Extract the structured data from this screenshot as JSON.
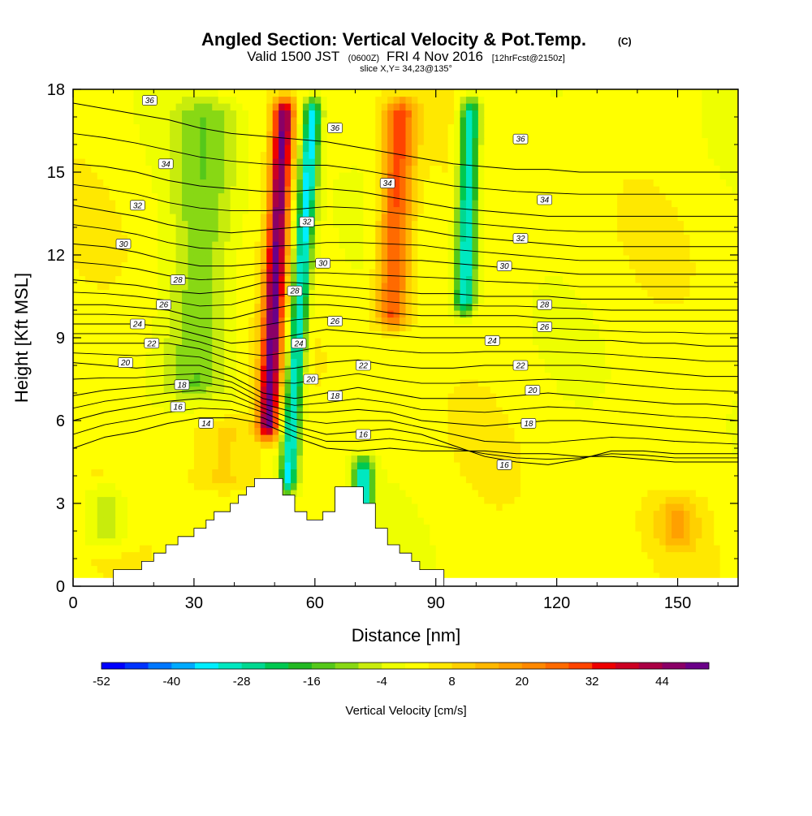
{
  "title": "Angled Section: Vertical Velocity & Pot.Temp.",
  "title_suffix": "(C)",
  "valid_main": "Valid 1500 JST",
  "valid_paren1": "(0600Z)",
  "valid_date": "FRI 4 Nov 2016",
  "valid_paren2": "[12hrFcst@2150z]",
  "slice_info": "slice X,Y= 34,23@135°",
  "colors": {
    "background": "#ffffff",
    "terrain": "#ffffff",
    "contour": "#000000"
  },
  "chart_data": {
    "type": "heatmap",
    "xlabel": "Distance [nm]",
    "ylabel": "Height [Kft MSL]",
    "xlim": [
      0,
      165
    ],
    "ylim": [
      0,
      18
    ],
    "x_ticks": [
      {
        "value": 0,
        "label": "0"
      },
      {
        "value": 30,
        "label": "30"
      },
      {
        "value": 60,
        "label": "60"
      },
      {
        "value": 90,
        "label": "90"
      },
      {
        "value": 120,
        "label": "120"
      },
      {
        "value": 150,
        "label": "150"
      }
    ],
    "y_ticks": [
      {
        "value": 0,
        "label": "0"
      },
      {
        "value": 3,
        "label": "3"
      },
      {
        "value": 6,
        "label": "6"
      },
      {
        "value": 9,
        "label": "9"
      },
      {
        "value": 12,
        "label": "12"
      },
      {
        "value": 15,
        "label": "15"
      },
      {
        "value": 18,
        "label": "18"
      }
    ],
    "colorbar": {
      "title": "Vertical Velocity [cm/s]",
      "min": -52,
      "max": 52,
      "step": 4,
      "tick_labels": [
        "-52",
        "-40",
        "-28",
        "-16",
        "-4",
        "8",
        "20",
        "32",
        "44"
      ],
      "colors": [
        "#0000ff",
        "#0033ff",
        "#0077ff",
        "#00aaff",
        "#00eeff",
        "#00e8c0",
        "#00d890",
        "#00c850",
        "#22b822",
        "#55c81a",
        "#88d814",
        "#c8ec0c",
        "#eeff00",
        "#ffff00",
        "#ffe800",
        "#ffd000",
        "#ffb800",
        "#ffa000",
        "#ff8800",
        "#ff6a00",
        "#ff4400",
        "#ee0000",
        "#cc0022",
        "#aa0044",
        "#8a0066",
        "#6a0088"
      ]
    },
    "updrafts": [
      {
        "x": 48,
        "w": 2.6,
        "amp": 46,
        "zmin": 5.0,
        "zmax": 18,
        "tilt": 0.35
      },
      {
        "x": 79,
        "w": 4.0,
        "amp": 28,
        "zmin": 9.0,
        "zmax": 18,
        "tilt": 0.25
      },
      {
        "x": 37,
        "w": 9.0,
        "amp": 9,
        "zmin": 3.0,
        "zmax": 6.5,
        "tilt": 0
      },
      {
        "x": 150,
        "w": 5.0,
        "amp": 12,
        "zmin": 1.0,
        "zmax": 3.5,
        "tilt": 0
      }
    ],
    "downdrafts": [
      {
        "x": 53,
        "w": 2.2,
        "amp": 36,
        "zmin": 3.0,
        "zmax": 18,
        "tilt": 0.45
      },
      {
        "x": 97,
        "w": 2.5,
        "amp": 34,
        "zmin": 9.5,
        "zmax": 18,
        "tilt": 0.2
      },
      {
        "x": 72,
        "w": 2.5,
        "amp": 34,
        "zmin": 2.4,
        "zmax": 5.0,
        "tilt": 0
      },
      {
        "x": 30,
        "w": 8.0,
        "amp": 12,
        "zmin": 6.5,
        "zmax": 18,
        "tilt": 0.3
      },
      {
        "x": 8,
        "w": 6.0,
        "amp": 10,
        "zmin": 1.0,
        "zmax": 4.0,
        "tilt": 0
      }
    ],
    "terrain": [
      [
        10,
        0.3
      ],
      [
        10,
        0.6
      ],
      [
        17,
        0.6
      ],
      [
        17,
        0.9
      ],
      [
        20,
        0.9
      ],
      [
        20,
        1.2
      ],
      [
        23,
        1.2
      ],
      [
        23,
        1.5
      ],
      [
        26,
        1.5
      ],
      [
        26,
        1.8
      ],
      [
        30,
        1.8
      ],
      [
        30,
        2.1
      ],
      [
        33,
        2.1
      ],
      [
        33,
        2.4
      ],
      [
        35,
        2.4
      ],
      [
        35,
        2.7
      ],
      [
        39,
        2.7
      ],
      [
        39,
        3.0
      ],
      [
        41,
        3.0
      ],
      [
        41,
        3.3
      ],
      [
        43,
        3.3
      ],
      [
        43,
        3.6
      ],
      [
        45,
        3.6
      ],
      [
        45,
        3.9
      ],
      [
        52,
        3.9
      ],
      [
        52,
        3.3
      ],
      [
        55,
        3.3
      ],
      [
        55,
        2.7
      ],
      [
        58,
        2.7
      ],
      [
        58,
        2.4
      ],
      [
        62,
        2.4
      ],
      [
        62,
        2.7
      ],
      [
        65,
        2.7
      ],
      [
        65,
        3.6
      ],
      [
        72,
        3.6
      ],
      [
        72,
        3.0
      ],
      [
        75,
        3.0
      ],
      [
        75,
        2.1
      ],
      [
        78,
        2.1
      ],
      [
        78,
        1.5
      ],
      [
        81,
        1.5
      ],
      [
        81,
        1.2
      ],
      [
        84,
        1.2
      ],
      [
        84,
        0.9
      ],
      [
        86,
        0.9
      ],
      [
        86,
        0.6
      ],
      [
        92,
        0.6
      ],
      [
        92,
        0.3
      ]
    ],
    "theta_contours": [
      {
        "level": 14,
        "label": "14",
        "z": [
          5.0,
          5.4,
          5.6,
          5.9,
          6.1,
          6.1,
          5.9,
          5.4,
          5.0,
          4.9,
          5.0,
          4.9,
          4.9,
          4.9,
          4.8,
          4.8,
          4.7,
          4.7,
          4.6,
          4.5,
          4.5,
          4.5
        ]
      },
      {
        "level": 16,
        "label": "16",
        "z": [
          6.0,
          6.3,
          6.5,
          6.7,
          6.8,
          6.7,
          6.3,
          5.8,
          5.5,
          5.6,
          5.7,
          5.5,
          5.1,
          4.7,
          4.5,
          4.4,
          4.6,
          4.9,
          4.9,
          4.8,
          4.8,
          4.8
        ]
      },
      {
        "level": 18,
        "label": "18",
        "z": [
          6.9,
          7.1,
          7.2,
          7.3,
          7.4,
          7.2,
          6.6,
          6.3,
          6.3,
          6.4,
          6.3,
          6.0,
          5.9,
          5.8,
          5.9,
          6.0,
          6.0,
          5.9,
          5.8,
          5.7,
          5.6,
          5.5
        ]
      },
      {
        "level": 20,
        "label": "20",
        "z": [
          8.1,
          8.0,
          7.9,
          8.0,
          8.0,
          7.6,
          7.0,
          6.8,
          7.0,
          7.2,
          7.0,
          6.8,
          6.8,
          6.8,
          6.9,
          7.0,
          6.9,
          6.8,
          6.7,
          6.6,
          6.6,
          6.5
        ]
      },
      {
        "level": 22,
        "label": "22",
        "z": [
          8.8,
          8.8,
          8.8,
          8.8,
          8.6,
          8.2,
          7.8,
          7.9,
          8.1,
          8.2,
          8.0,
          7.9,
          7.9,
          8.0,
          8.0,
          8.0,
          8.0,
          7.9,
          7.8,
          7.7,
          7.6,
          7.6
        ]
      },
      {
        "level": 24,
        "label": "24",
        "z": [
          9.5,
          9.5,
          9.5,
          9.4,
          9.1,
          8.8,
          8.9,
          9.1,
          9.3,
          9.2,
          9.1,
          9.0,
          9.0,
          9.0,
          9.0,
          9.0,
          8.9,
          8.9,
          8.8,
          8.8,
          8.7,
          8.7
        ]
      },
      {
        "level": 26,
        "label": "26",
        "z": [
          10.2,
          10.2,
          10.1,
          10.0,
          9.7,
          9.7,
          10.0,
          10.2,
          10.2,
          10.1,
          9.9,
          9.8,
          9.8,
          9.8,
          9.8,
          9.7,
          9.7,
          9.6,
          9.6,
          9.6,
          9.6,
          9.6
        ]
      },
      {
        "level": 28,
        "label": "28",
        "z": [
          11.1,
          11.0,
          10.9,
          10.7,
          10.6,
          10.7,
          11.0,
          11.0,
          10.9,
          10.8,
          10.7,
          10.6,
          10.6,
          10.5,
          10.5,
          10.5,
          10.4,
          10.4,
          10.4,
          10.4,
          10.4,
          10.4
        ]
      },
      {
        "level": 30,
        "label": "30",
        "z": [
          12.4,
          12.3,
          12.1,
          11.8,
          11.6,
          11.6,
          11.7,
          11.7,
          11.8,
          11.8,
          11.8,
          11.8,
          11.7,
          11.6,
          11.5,
          11.4,
          11.3,
          11.3,
          11.3,
          11.3,
          11.3,
          11.3
        ]
      },
      {
        "level": 32,
        "label": "32",
        "z": [
          13.8,
          13.6,
          13.4,
          13.1,
          12.9,
          12.8,
          12.9,
          13.0,
          13.1,
          13.1,
          13.0,
          12.9,
          12.7,
          12.6,
          12.5,
          12.4,
          12.3,
          12.3,
          12.3,
          12.3,
          12.3,
          12.3
        ]
      },
      {
        "level": 34,
        "label": "34",
        "z": [
          15.3,
          15.2,
          15.0,
          14.7,
          14.5,
          14.4,
          14.3,
          14.3,
          14.4,
          14.3,
          14.1,
          13.9,
          13.7,
          13.6,
          13.5,
          13.4,
          13.4,
          13.4,
          13.4,
          13.4,
          13.4,
          13.4
        ]
      },
      {
        "level": 36,
        "label": "36",
        "z": [
          17.5,
          17.3,
          17.1,
          16.9,
          16.6,
          16.4,
          16.3,
          16.2,
          16.1,
          15.9,
          15.7,
          15.5,
          15.3,
          15.2,
          15.1,
          15.1,
          15.0,
          15.0,
          15.0,
          15.0,
          15.0,
          15.0
        ]
      }
    ],
    "contour_labels": [
      {
        "text": "36",
        "x": 19,
        "z": 17.6
      },
      {
        "text": "34",
        "x": 23,
        "z": 15.3
      },
      {
        "text": "32",
        "x": 16,
        "z": 13.8
      },
      {
        "text": "30",
        "x": 12.5,
        "z": 12.4
      },
      {
        "text": "28",
        "x": 26,
        "z": 11.1
      },
      {
        "text": "26",
        "x": 22.5,
        "z": 10.2
      },
      {
        "text": "24",
        "x": 16,
        "z": 9.5
      },
      {
        "text": "22",
        "x": 19.5,
        "z": 8.8
      },
      {
        "text": "20",
        "x": 13,
        "z": 8.1
      },
      {
        "text": "18",
        "x": 27,
        "z": 7.3
      },
      {
        "text": "16",
        "x": 26,
        "z": 6.5
      },
      {
        "text": "14",
        "x": 33,
        "z": 5.9
      },
      {
        "text": "36",
        "x": 65,
        "z": 16.6
      },
      {
        "text": "32",
        "x": 58,
        "z": 13.2
      },
      {
        "text": "30",
        "x": 62,
        "z": 11.7
      },
      {
        "text": "28",
        "x": 55,
        "z": 10.7
      },
      {
        "text": "26",
        "x": 65,
        "z": 9.6
      },
      {
        "text": "24",
        "x": 56,
        "z": 8.8
      },
      {
        "text": "20",
        "x": 59,
        "z": 7.5
      },
      {
        "text": "18",
        "x": 65,
        "z": 6.9
      },
      {
        "text": "16",
        "x": 72,
        "z": 5.5
      },
      {
        "text": "22",
        "x": 72,
        "z": 8.0
      },
      {
        "text": "34",
        "x": 78,
        "z": 14.6
      },
      {
        "text": "36",
        "x": 111,
        "z": 16.2
      },
      {
        "text": "34",
        "x": 117,
        "z": 14.0
      },
      {
        "text": "32",
        "x": 111,
        "z": 12.6
      },
      {
        "text": "30",
        "x": 107,
        "z": 11.6
      },
      {
        "text": "28",
        "x": 117,
        "z": 10.2
      },
      {
        "text": "26",
        "x": 117,
        "z": 9.4
      },
      {
        "text": "24",
        "x": 104,
        "z": 8.9
      },
      {
        "text": "22",
        "x": 111,
        "z": 8.0
      },
      {
        "text": "20",
        "x": 114,
        "z": 7.1
      },
      {
        "text": "18",
        "x": 113,
        "z": 5.9
      },
      {
        "text": "16",
        "x": 107,
        "z": 4.4
      }
    ]
  }
}
